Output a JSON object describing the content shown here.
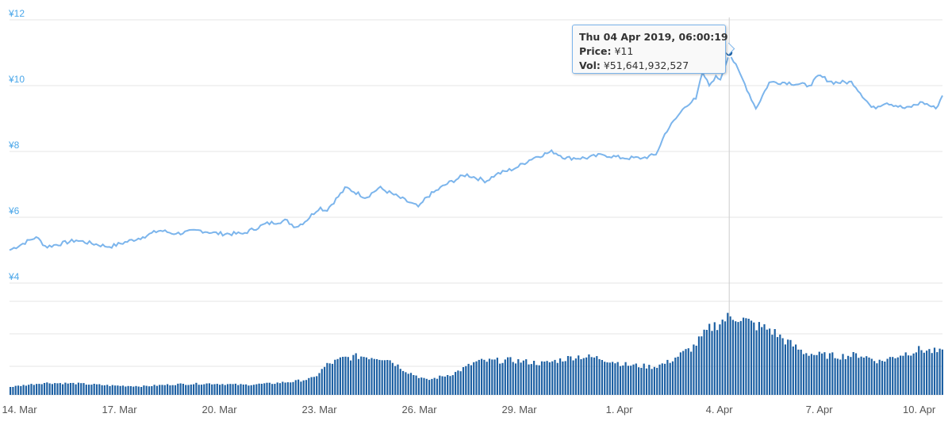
{
  "chart_data": {
    "type": "line",
    "price_axis": {
      "ticks": [
        "¥4",
        "¥6",
        "¥8",
        "¥10",
        "¥12"
      ],
      "ylim": [
        4,
        12
      ]
    },
    "x_ticks": [
      "14. Mar",
      "17. Mar",
      "20. Mar",
      "23. Mar",
      "26. Mar",
      "29. Mar",
      "1. Apr",
      "4. Apr",
      "7. Apr",
      "10. Apr"
    ],
    "x_tick_days": [
      1.8,
      4.8,
      7.8,
      10.8,
      13.8,
      16.8,
      19.8,
      22.8,
      25.8,
      28.8
    ],
    "day_range": [
      1.5,
      2.7,
      29.5,
      30.6
    ],
    "grid": true,
    "series": [
      {
        "kind": "price",
        "x": [
          1.5,
          2.3,
          2.6,
          3.5,
          4.0,
          4.5,
          5.5,
          6.0,
          6.5,
          7.2,
          7.8,
          8.0,
          8.5,
          9.2,
          9.8,
          10.1,
          10.4,
          10.8,
          11.0,
          11.6,
          12.2,
          12.6,
          13.2,
          13.8,
          14.0,
          14.6,
          15.2,
          15.8,
          16.1,
          16.7,
          17.2,
          17.8,
          18.2,
          18.8,
          19.3,
          19.9,
          20.2,
          20.5,
          20.9,
          21.2,
          21.5,
          21.8,
          22.1,
          22.3,
          22.5,
          22.7,
          22.8,
          23.1,
          23.5,
          23.9,
          24.3,
          24.8,
          25.5,
          25.8,
          26.2,
          26.8,
          27.4,
          27.8,
          28.4,
          28.9,
          29.3,
          29.5
        ],
        "values": [
          5.0,
          5.4,
          5.1,
          5.3,
          5.2,
          5.1,
          5.4,
          5.6,
          5.5,
          5.6,
          5.5,
          5.5,
          5.5,
          5.8,
          5.9,
          5.7,
          5.9,
          6.3,
          6.2,
          6.9,
          6.6,
          6.9,
          6.6,
          6.3,
          6.6,
          7.0,
          7.3,
          7.1,
          7.3,
          7.5,
          7.8,
          8.0,
          7.8,
          7.8,
          7.9,
          7.8,
          7.8,
          7.8,
          7.9,
          8.6,
          9.0,
          9.4,
          9.6,
          10.4,
          10.0,
          10.3,
          10.1,
          11.0,
          10.2,
          9.3,
          10.1,
          10.1,
          10.0,
          10.3,
          10.1,
          10.1,
          9.3,
          9.5,
          9.3,
          9.5,
          9.3,
          9.7
        ]
      },
      {
        "kind": "volume",
        "x": [
          1.5,
          2.0,
          2.5,
          3.5,
          4.5,
          5.5,
          6.5,
          7.5,
          8.5,
          9.3,
          10.0,
          10.6,
          11.0,
          11.5,
          12.0,
          12.8,
          13.4,
          14.0,
          14.8,
          15.5,
          16.5,
          17.5,
          18.5,
          19.2,
          20.0,
          20.8,
          21.2,
          21.6,
          22.0,
          22.5,
          23.0,
          23.3,
          23.8,
          24.3,
          24.8,
          25.3,
          25.7,
          26.4,
          27.0,
          27.6,
          28.2,
          28.8,
          29.5
        ],
        "values": [
          0.12,
          0.15,
          0.18,
          0.17,
          0.14,
          0.13,
          0.16,
          0.17,
          0.15,
          0.17,
          0.2,
          0.25,
          0.45,
          0.55,
          0.58,
          0.55,
          0.35,
          0.22,
          0.32,
          0.5,
          0.52,
          0.47,
          0.58,
          0.55,
          0.45,
          0.42,
          0.48,
          0.6,
          0.72,
          1.0,
          1.15,
          1.18,
          1.05,
          0.98,
          0.8,
          0.64,
          0.6,
          0.58,
          0.6,
          0.5,
          0.6,
          0.68,
          0.63
        ]
      }
    ]
  },
  "tooltip": {
    "title": "Thu 04 Apr 2019, 06:00:19",
    "price_key": "Price:",
    "price_value": "¥11",
    "vol_key": "Vol:",
    "vol_value": "¥51,641,932,527",
    "point_x": 23.1,
    "point_value": 11
  },
  "colors": {
    "line": "#7cb5ec",
    "volume": "#1d60a3",
    "grid": "#e6e6e6",
    "crosshair": "#cccccc",
    "marker": "#1d60a3",
    "ytick": "#49a6e9"
  }
}
